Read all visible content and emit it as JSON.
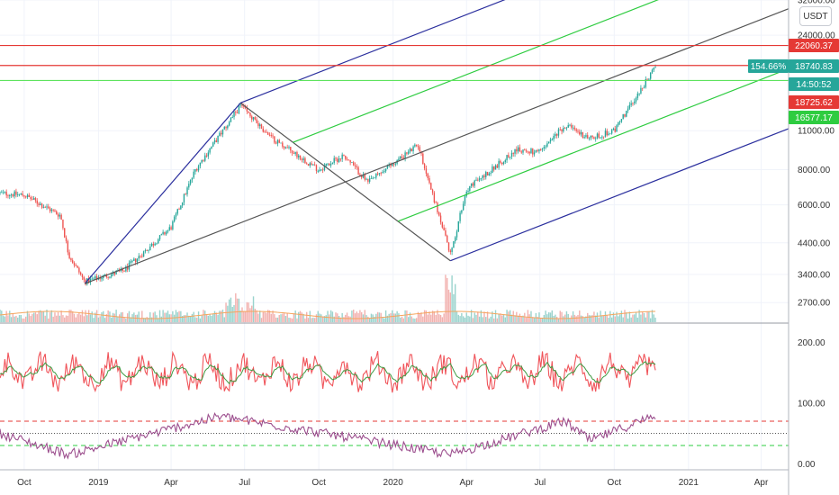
{
  "currency_button": "USDT",
  "colors": {
    "up": "#26a69a",
    "down": "#ef5350",
    "volume_ma": "#f5a55c",
    "pitchfork_outer": "#2b2f9e",
    "pitchfork_inner": "#2ecc40",
    "median": "#555555",
    "line_red": "#e53935",
    "line_green": "#5ee35e",
    "rsi": "#9c4f8e",
    "cci": "#f0545a",
    "cci_ma": "#3e9a42"
  },
  "chart_data": [
    {
      "type": "candlestick",
      "y_scale": "log",
      "ylim": [
        2300,
        32000
      ],
      "x_ticks": [
        "Oct",
        "2019",
        "Apr",
        "Jul",
        "Oct",
        "2020",
        "Apr",
        "Jul",
        "Oct",
        "2021",
        "Apr"
      ],
      "y_ticks": [
        "32000.00",
        "24000.00",
        "11000.00",
        "8000.00",
        "6000.00",
        "4400.00",
        "3400.00",
        "2700.00"
      ],
      "price_path": [
        {
          "date": "2018-09",
          "price": 6600
        },
        {
          "date": "2018-10",
          "price": 6500
        },
        {
          "date": "2018-11-15",
          "price": 5500
        },
        {
          "date": "2018-11-25",
          "price": 4000
        },
        {
          "date": "2018-12-15",
          "price": 3200
        },
        {
          "date": "2019-02",
          "price": 3500
        },
        {
          "date": "2019-04",
          "price": 5000
        },
        {
          "date": "2019-05",
          "price": 8000
        },
        {
          "date": "2019-06-26",
          "price": 13500
        },
        {
          "date": "2019-08",
          "price": 10500
        },
        {
          "date": "2019-10",
          "price": 8000
        },
        {
          "date": "2019-11",
          "price": 9000
        },
        {
          "date": "2019-12",
          "price": 7200
        },
        {
          "date": "2020-02",
          "price": 9800
        },
        {
          "date": "2020-03-12",
          "price": 4000
        },
        {
          "date": "2020-04",
          "price": 6800
        },
        {
          "date": "2020-06",
          "price": 9400
        },
        {
          "date": "2020-07",
          "price": 9200
        },
        {
          "date": "2020-08",
          "price": 11500
        },
        {
          "date": "2020-09",
          "price": 10300
        },
        {
          "date": "2020-10",
          "price": 11000
        },
        {
          "date": "2020-11-22",
          "price": 18700
        }
      ],
      "pitchfork": [
        {
          "date": "2018-12-15",
          "price": 3150
        },
        {
          "date": "2019-06-26",
          "price": 13800
        },
        {
          "date": "2020-03-12",
          "price": 3800
        }
      ],
      "horizontal_lines": [
        {
          "price": 22060.37,
          "color": "red"
        },
        {
          "price": 18740.83,
          "color": "red"
        },
        {
          "price": 16577.17,
          "color": "green"
        }
      ],
      "price_tags": [
        {
          "label": "22060.37",
          "color": "#e53935"
        },
        {
          "label": "154.66%",
          "color": "#26a69a"
        },
        {
          "label": "18740.83",
          "color": "#26a69a"
        },
        {
          "label": "14:50:52",
          "color": "#26a69a"
        },
        {
          "label": "18725.62",
          "color": "#e53935"
        },
        {
          "label": "16577.17",
          "color": "#2ecc40"
        }
      ]
    },
    {
      "type": "line",
      "ylim": [
        -10,
        230
      ],
      "y_ticks": [
        "200.00",
        "100.00",
        "0.00"
      ],
      "levels": [
        {
          "value": 70,
          "style": "dashed",
          "color": "#e53935"
        },
        {
          "value": 50,
          "style": "dotted",
          "color": "#555555"
        },
        {
          "value": 30,
          "style": "dashed",
          "color": "#2ecc40"
        }
      ],
      "series_shapes": [
        {
          "kind": "cci",
          "baseline": 150,
          "amplitude": 28
        },
        {
          "kind": "rsi",
          "key_points": [
            {
              "date": "2018-09",
              "value": 50
            },
            {
              "date": "2018-11-25",
              "value": 15
            },
            {
              "date": "2019-06",
              "value": 78
            },
            {
              "date": "2019-12",
              "value": 38
            },
            {
              "date": "2020-03-12",
              "value": 15
            },
            {
              "date": "2020-08",
              "value": 70
            },
            {
              "date": "2020-09",
              "value": 38
            },
            {
              "date": "2020-11-22",
              "value": 80
            }
          ]
        }
      ]
    }
  ]
}
